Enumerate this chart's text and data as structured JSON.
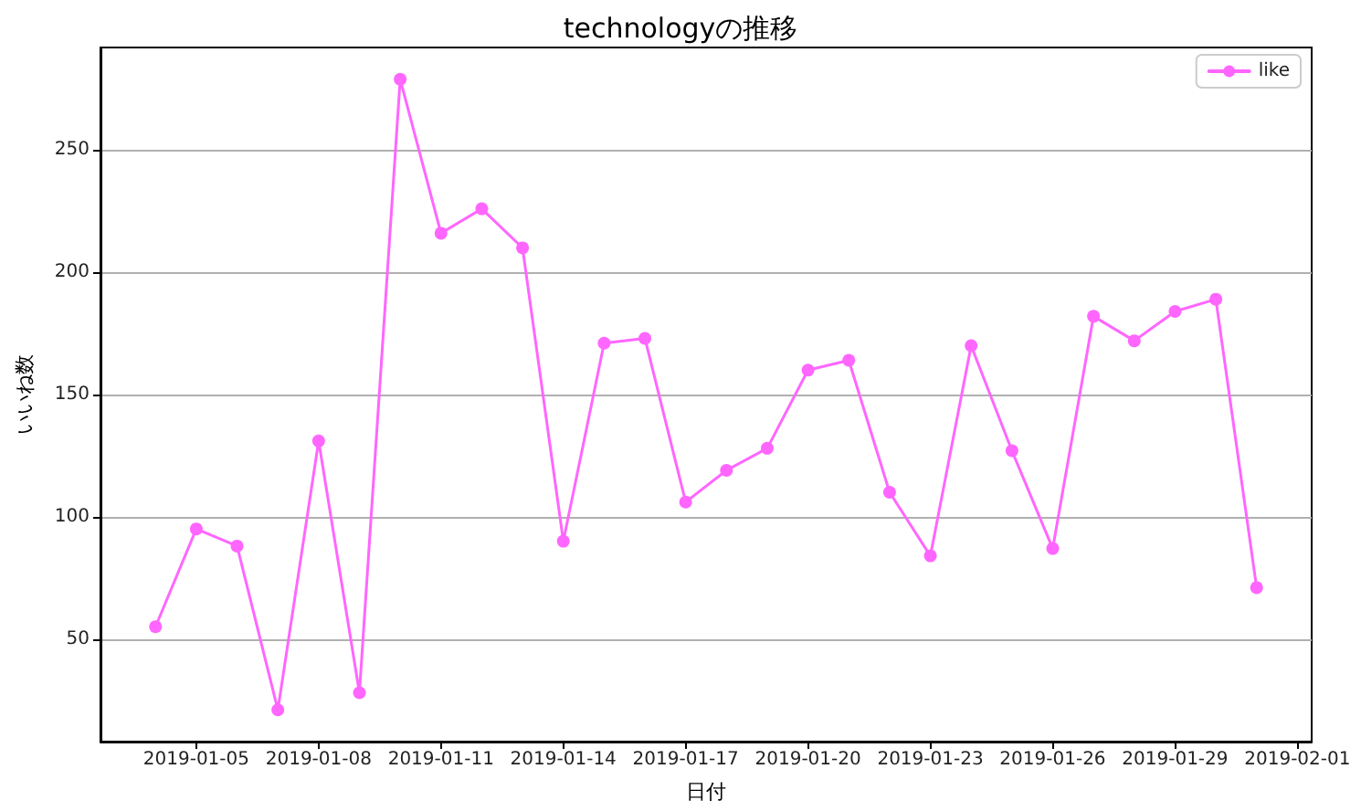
{
  "chart_data": {
    "type": "line",
    "title": "technologyの推移",
    "xlabel": "日付",
    "ylabel": "いいね数",
    "x": [
      "2019-01-04",
      "2019-01-05",
      "2019-01-06",
      "2019-01-07",
      "2019-01-08",
      "2019-01-09",
      "2019-01-10",
      "2019-01-11",
      "2019-01-12",
      "2019-01-13",
      "2019-01-14",
      "2019-01-15",
      "2019-01-16",
      "2019-01-17",
      "2019-01-18",
      "2019-01-19",
      "2019-01-20",
      "2019-01-21",
      "2019-01-22",
      "2019-01-23",
      "2019-01-24",
      "2019-01-25",
      "2019-01-26",
      "2019-01-27",
      "2019-01-28",
      "2019-01-29",
      "2019-01-30",
      "2019-01-31"
    ],
    "series": [
      {
        "name": "like",
        "color": "#ff66ff",
        "values": [
          55,
          95,
          88,
          21,
          131,
          28,
          279,
          216,
          226,
          210,
          90,
          171,
          173,
          106,
          119,
          128,
          160,
          164,
          110,
          84,
          170,
          127,
          87,
          182,
          172,
          184,
          189,
          71
        ]
      }
    ],
    "xlim": [
      "2019-01-02T15:36",
      "2019-02-01T08:24"
    ],
    "xticks": [
      "2019-01-05",
      "2019-01-08",
      "2019-01-11",
      "2019-01-14",
      "2019-01-17",
      "2019-01-20",
      "2019-01-23",
      "2019-01-26",
      "2019-01-29",
      "2019-02-01"
    ],
    "ylim": [
      8,
      292
    ],
    "yticks": [
      50,
      100,
      150,
      200,
      250
    ],
    "grid": "y",
    "legend": "top right",
    "marker": "circle"
  }
}
